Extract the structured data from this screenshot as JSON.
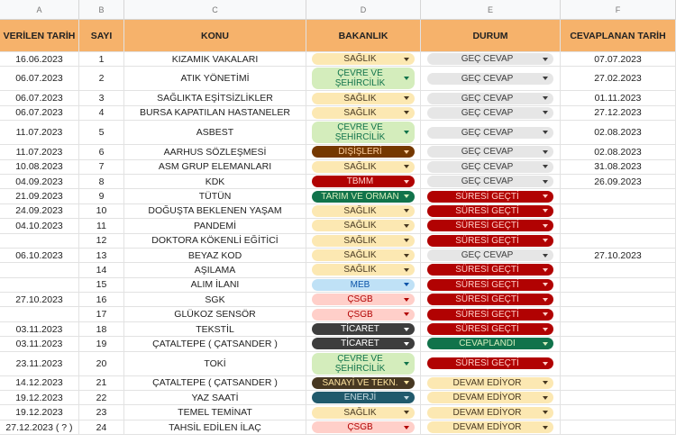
{
  "sheet": {
    "column_letters": [
      "A",
      "B",
      "C",
      "D",
      "E",
      "F"
    ],
    "headers": [
      "VERİLEN TARİH",
      "SAYI",
      "KONU",
      "BAKANLIK",
      "DURUM",
      "CEVAPLANAN TARİH"
    ],
    "header_color": "#f6b26b",
    "rows": [
      {
        "date": "16.06.2023",
        "no": 1,
        "subject": "KIZAMIK VAKALARI",
        "ministry": "SAĞLIK",
        "ministry_color": [
          "#fce8b2",
          "#473821"
        ],
        "status": "GEÇ CEVAP",
        "status_color": [
          "#e6e6e6",
          "#3c3c3c"
        ],
        "answered": "07.07.2023"
      },
      {
        "date": "06.07.2023",
        "no": 2,
        "subject": "ATIK YÖNETİMİ",
        "ministry": "ÇEVRE VE ŞEHİRCİLİK",
        "ministry_color": [
          "#d4edbc",
          "#11734b"
        ],
        "status": "GEÇ CEVAP",
        "status_color": [
          "#e6e6e6",
          "#3c3c3c"
        ],
        "answered": "27.02.2023"
      },
      {
        "date": "06.07.2023",
        "no": 3,
        "subject": "SAĞLIKTA EŞİTSİZLİKLER",
        "ministry": "SAĞLIK",
        "ministry_color": [
          "#fce8b2",
          "#473821"
        ],
        "status": "GEÇ CEVAP",
        "status_color": [
          "#e6e6e6",
          "#3c3c3c"
        ],
        "answered": "01.11.2023"
      },
      {
        "date": "06.07.2023",
        "no": 4,
        "subject": "BURSA KAPATILAN HASTANELER",
        "ministry": "SAĞLIK",
        "ministry_color": [
          "#fce8b2",
          "#473821"
        ],
        "status": "GEÇ CEVAP",
        "status_color": [
          "#e6e6e6",
          "#3c3c3c"
        ],
        "answered": "27.12.2023"
      },
      {
        "date": "11.07.2023",
        "no": 5,
        "subject": "ASBEST",
        "ministry": "ÇEVRE VE ŞEHİRCİLİK",
        "ministry_color": [
          "#d4edbc",
          "#11734b"
        ],
        "status": "GEÇ CEVAP",
        "status_color": [
          "#e6e6e6",
          "#3c3c3c"
        ],
        "answered": "02.08.2023"
      },
      {
        "date": "11.07.2023",
        "no": 6,
        "subject": "AARHUS SÖZLEŞMESİ",
        "ministry": "DIŞİŞLERİ",
        "ministry_color": [
          "#753800",
          "#ffcfa0"
        ],
        "status": "GEÇ CEVAP",
        "status_color": [
          "#e6e6e6",
          "#3c3c3c"
        ],
        "answered": "02.08.2023"
      },
      {
        "date": "10.08.2023",
        "no": 7,
        "subject": "ASM GRUP ELEMANLARI",
        "ministry": "SAĞLIK",
        "ministry_color": [
          "#fce8b2",
          "#473821"
        ],
        "status": "GEÇ CEVAP",
        "status_color": [
          "#e6e6e6",
          "#3c3c3c"
        ],
        "answered": "31.08.2023"
      },
      {
        "date": "04.09.2023",
        "no": 8,
        "subject": "KDK",
        "ministry": "TBMM",
        "ministry_color": [
          "#b10202",
          "#ffcfc9"
        ],
        "status": "GEÇ CEVAP",
        "status_color": [
          "#e6e6e6",
          "#3c3c3c"
        ],
        "answered": "26.09.2023"
      },
      {
        "date": "21.09.2023",
        "no": 9,
        "subject": "TÜTÜN",
        "ministry": "TARIM VE ORMAN",
        "ministry_color": [
          "#11734b",
          "#d4edbc"
        ],
        "status": "SÜRESİ GEÇTİ",
        "status_color": [
          "#b10202",
          "#ffcfc9"
        ],
        "answered": null
      },
      {
        "date": "24.09.2023",
        "no": 10,
        "subject": "DOĞUŞTA BEKLENEN YAŞAM",
        "ministry": "SAĞLIK",
        "ministry_color": [
          "#fce8b2",
          "#473821"
        ],
        "status": "SÜRESİ GEÇTİ",
        "status_color": [
          "#b10202",
          "#ffcfc9"
        ],
        "answered": null
      },
      {
        "date": "04.10.2023",
        "no": 11,
        "subject": "PANDEMİ",
        "ministry": "SAĞLIK",
        "ministry_color": [
          "#fce8b2",
          "#473821"
        ],
        "status": "SÜRESİ GEÇTİ",
        "status_color": [
          "#b10202",
          "#ffcfc9"
        ],
        "answered": null
      },
      {
        "date": null,
        "no": 12,
        "subject": "DOKTORA KÖKENLİ EĞİTİCİ",
        "ministry": "SAĞLIK",
        "ministry_color": [
          "#fce8b2",
          "#473821"
        ],
        "status": "SÜRESİ GEÇTİ",
        "status_color": [
          "#b10202",
          "#ffcfc9"
        ],
        "answered": null
      },
      {
        "date": "06.10.2023",
        "no": 13,
        "subject": "BEYAZ KOD",
        "ministry": "SAĞLIK",
        "ministry_color": [
          "#fce8b2",
          "#473821"
        ],
        "status": "GEÇ CEVAP",
        "status_color": [
          "#e6e6e6",
          "#3c3c3c"
        ],
        "answered": "27.10.2023"
      },
      {
        "date": null,
        "no": 14,
        "subject": "AŞILAMA",
        "ministry": "SAĞLIK",
        "ministry_color": [
          "#fce8b2",
          "#473821"
        ],
        "status": "SÜRESİ GEÇTİ",
        "status_color": [
          "#b10202",
          "#ffcfc9"
        ],
        "answered": null
      },
      {
        "date": null,
        "no": 15,
        "subject": "ALIM İLANI",
        "ministry": "MEB",
        "ministry_color": [
          "#bfe1f6",
          "#0a53a8"
        ],
        "status": "SÜRESİ GEÇTİ",
        "status_color": [
          "#b10202",
          "#ffcfc9"
        ],
        "answered": null
      },
      {
        "date": "27.10.2023",
        "no": 16,
        "subject": "SGK",
        "ministry": "ÇSGB",
        "ministry_color": [
          "#ffcfc9",
          "#b10202"
        ],
        "status": "SÜRESİ GEÇTİ",
        "status_color": [
          "#b10202",
          "#ffcfc9"
        ],
        "answered": null
      },
      {
        "date": null,
        "no": 17,
        "subject": "GLÜKOZ SENSÖR",
        "ministry": "ÇSGB",
        "ministry_color": [
          "#ffcfc9",
          "#b10202"
        ],
        "status": "SÜRESİ GEÇTİ",
        "status_color": [
          "#b10202",
          "#ffcfc9"
        ],
        "answered": null
      },
      {
        "date": "03.11.2023",
        "no": 18,
        "subject": "TEKSTİL",
        "ministry": "TİCARET",
        "ministry_color": [
          "#3d3d3d",
          "#ffffff"
        ],
        "status": "SÜRESİ GEÇTİ",
        "status_color": [
          "#b10202",
          "#ffcfc9"
        ],
        "answered": null
      },
      {
        "date": "03.11.2023",
        "no": 19,
        "subject": "ÇATALTEPE ( ÇATSANDER )",
        "ministry": "TİCARET",
        "ministry_color": [
          "#3d3d3d",
          "#ffffff"
        ],
        "status": "CEVAPLANDI",
        "status_color": [
          "#11734b",
          "#d4edbc"
        ],
        "answered": null
      },
      {
        "date": "23.11.2023",
        "no": 20,
        "subject": "TOKİ",
        "ministry": "ÇEVRE VE ŞEHİRCİLİK",
        "ministry_color": [
          "#d4edbc",
          "#11734b"
        ],
        "status": "SÜRESİ GEÇTİ",
        "status_color": [
          "#b10202",
          "#ffcfc9"
        ],
        "answered": null
      },
      {
        "date": "14.12.2023",
        "no": 21,
        "subject": "ÇATALTEPE ( ÇATSANDER )",
        "ministry": "SANAYİ VE TEKN.",
        "ministry_color": [
          "#473822",
          "#ffe5a0"
        ],
        "status": "DEVAM EDİYOR",
        "status_color": [
          "#fce8b2",
          "#473821"
        ],
        "answered": null
      },
      {
        "date": "19.12.2023",
        "no": 22,
        "subject": "YAZ SAATİ",
        "ministry": "ENERJİ",
        "ministry_color": [
          "#215a6c",
          "#c6dbe1"
        ],
        "status": "DEVAM EDİYOR",
        "status_color": [
          "#fce8b2",
          "#473821"
        ],
        "answered": null
      },
      {
        "date": "19.12.2023",
        "no": 23,
        "subject": "TEMEL TEMİNAT",
        "ministry": "SAĞLIK",
        "ministry_color": [
          "#fce8b2",
          "#473821"
        ],
        "status": "DEVAM EDİYOR",
        "status_color": [
          "#fce8b2",
          "#473821"
        ],
        "answered": null
      },
      {
        "date": "27.12.2023 ( ? )",
        "no": 24,
        "subject": "TAHSİL EDİLEN İLAÇ",
        "ministry": "ÇSGB",
        "ministry_color": [
          "#ffcfc9",
          "#b10202"
        ],
        "status": "DEVAM EDİYOR",
        "status_color": [
          "#fce8b2",
          "#473821"
        ],
        "answered": null
      }
    ]
  }
}
